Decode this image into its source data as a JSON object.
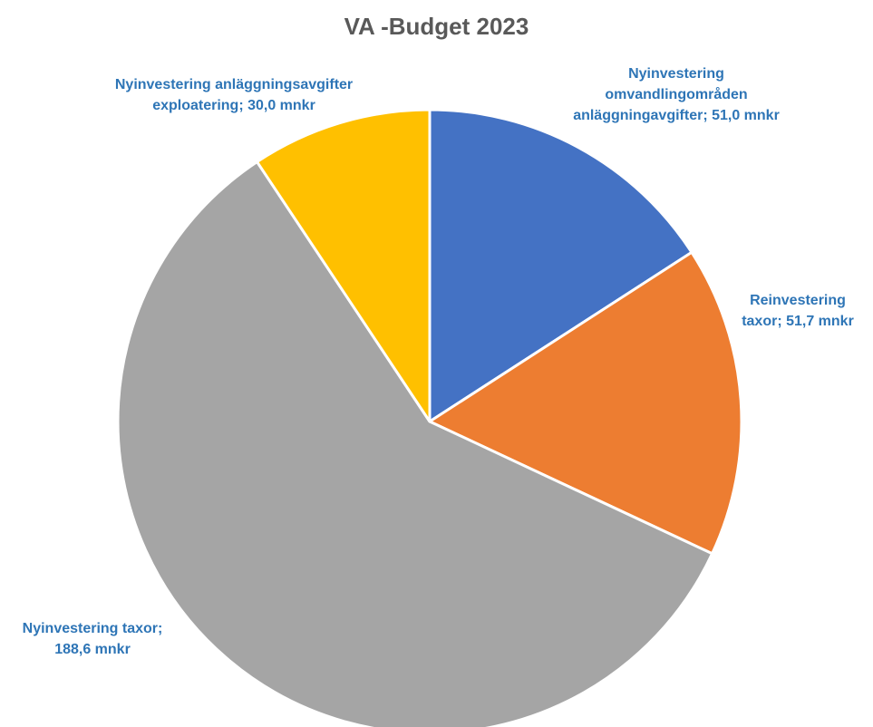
{
  "chart_data": {
    "type": "pie",
    "title": "VA -Budget 2023",
    "unit": "mnkr",
    "slices": [
      {
        "label": "Nyinvestering omvandlingområden anläggningavgifter",
        "value": 51.0,
        "data_label": "Nyinvestering\nomvandlingområden\nanläggningavgifter; 51,0 mnkr",
        "color": "#4472c4"
      },
      {
        "label": "Reinvestering taxor",
        "value": 51.7,
        "data_label": "Reinvestering\ntaxor; 51,7 mnkr",
        "color": "#ed7d31"
      },
      {
        "label": "Nyinvestering taxor",
        "value": 188.6,
        "data_label": "Nyinvestering taxor;\n188,6 mnkr",
        "color": "#a5a5a5"
      },
      {
        "label": "Nyinvestering anläggningsavgifter exploatering",
        "value": 30.0,
        "data_label": "Nyinvestering anläggningsavgifter\nexploatering; 30,0 mnkr",
        "color": "#ffc000"
      }
    ],
    "start": "12 o'clock",
    "direction": "clockwise",
    "legend": "none",
    "label_color": "#2e75b6"
  }
}
